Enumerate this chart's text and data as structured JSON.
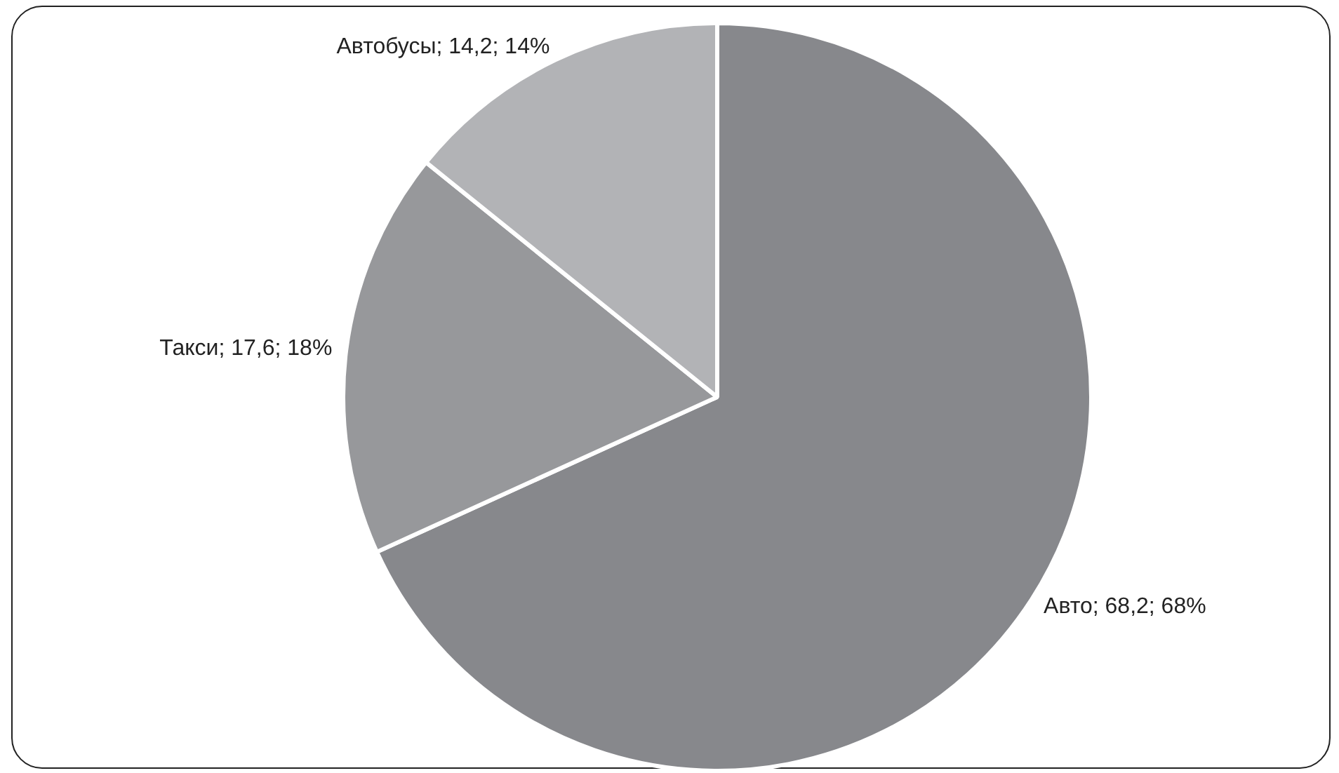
{
  "chart_data": {
    "type": "pie",
    "categories": [
      "Авто",
      "Такси",
      "Автобусы"
    ],
    "values": [
      68.2,
      17.6,
      14.2
    ],
    "colors": [
      "#87888c",
      "#97989b",
      "#b2b3b6"
    ],
    "value_labels": [
      "68,2; 68%",
      "17,6; 18%",
      "14,2; 14%"
    ]
  }
}
